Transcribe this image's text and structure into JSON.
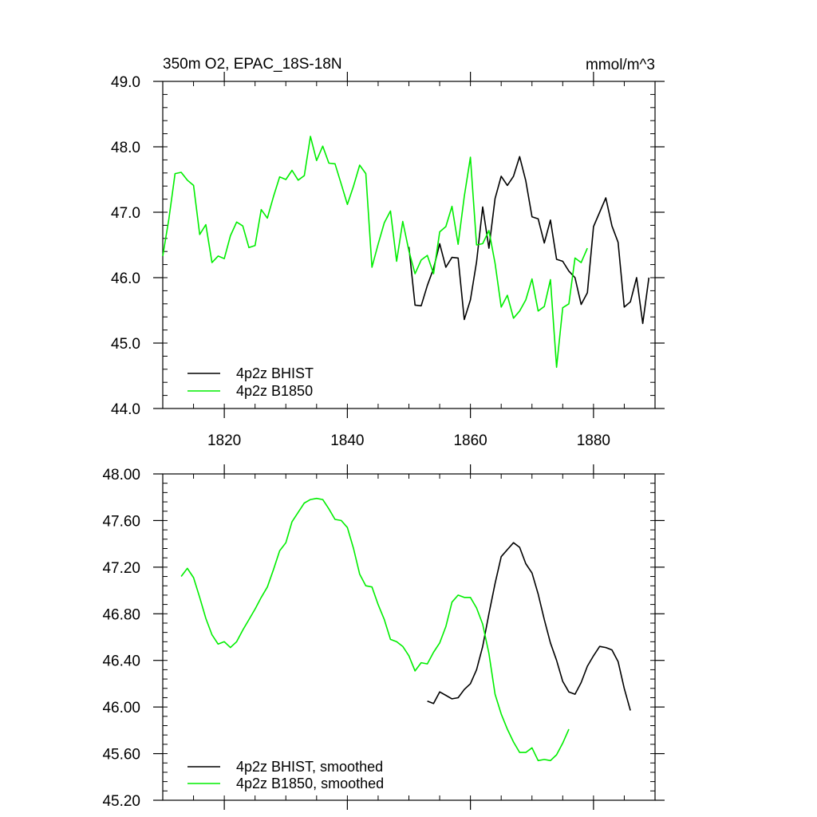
{
  "chart_data": [
    {
      "type": "line",
      "title": "350m O2, EPAC_18S-18N",
      "units": "mmol/m^3",
      "xlim": [
        1810,
        1890
      ],
      "ylim": [
        44.0,
        49.0
      ],
      "x_ticks": [
        1820,
        1840,
        1860,
        1880
      ],
      "y_ticks": [
        "44.0",
        "45.0",
        "46.0",
        "47.0",
        "48.0",
        "49.0"
      ],
      "grid": false,
      "legend": "bottom-left",
      "series": [
        {
          "name": "4p2z BHIST",
          "color": "#000000",
          "x_start": 1850,
          "values": [
            46.47,
            45.58,
            45.57,
            45.88,
            46.14,
            46.52,
            46.16,
            46.31,
            46.3,
            45.36,
            45.66,
            46.24,
            47.08,
            46.45,
            47.21,
            47.55,
            47.41,
            47.55,
            47.85,
            47.48,
            46.93,
            46.9,
            46.53,
            46.88,
            46.28,
            46.25,
            46.1,
            46.0,
            45.59,
            45.77,
            46.78,
            47.0,
            47.22,
            46.79,
            46.54,
            45.55,
            45.63,
            46.0,
            45.3,
            46.0
          ]
        },
        {
          "name": "4p2z B1850",
          "color": "#00ee00",
          "x_start": 1810,
          "values": [
            46.33,
            46.9,
            47.59,
            47.61,
            47.49,
            47.41,
            46.66,
            46.81,
            46.23,
            46.33,
            46.29,
            46.64,
            46.85,
            46.79,
            46.46,
            46.49,
            47.04,
            46.91,
            47.24,
            47.54,
            47.5,
            47.64,
            47.49,
            47.56,
            48.16,
            47.79,
            48.01,
            47.75,
            47.74,
            47.43,
            47.12,
            47.4,
            47.72,
            47.59,
            46.16,
            46.51,
            46.84,
            47.02,
            46.25,
            46.86,
            46.41,
            46.06,
            46.27,
            46.34,
            46.06,
            46.7,
            46.78,
            47.09,
            46.51,
            47.24,
            47.84,
            46.5,
            46.52,
            46.72,
            46.22,
            45.55,
            45.73,
            45.38,
            45.49,
            45.66,
            45.98,
            45.49,
            45.56,
            45.97,
            44.63,
            45.54,
            45.6,
            46.3,
            46.23,
            46.45
          ]
        }
      ]
    },
    {
      "type": "line",
      "xlim": [
        1810,
        1890
      ],
      "ylim": [
        45.2,
        48.0
      ],
      "x_ticks": [
        1820,
        1840,
        1860,
        1880
      ],
      "y_ticks": [
        "45.20",
        "45.60",
        "46.00",
        "46.40",
        "46.80",
        "47.20",
        "47.60",
        "48.00"
      ],
      "grid": false,
      "legend": "bottom-left",
      "series": [
        {
          "name": "4p2z BHIST, smoothed",
          "color": "#000000",
          "x_start": 1853,
          "values": [
            46.05,
            46.03,
            46.13,
            46.1,
            46.07,
            46.08,
            46.15,
            46.2,
            46.32,
            46.52,
            46.8,
            47.06,
            47.29,
            47.35,
            47.41,
            47.37,
            47.23,
            47.15,
            46.97,
            46.75,
            46.55,
            46.4,
            46.22,
            46.13,
            46.11,
            46.21,
            46.35,
            46.44,
            46.52,
            46.51,
            46.49,
            46.39,
            46.16,
            45.97
          ]
        },
        {
          "name": "4p2z B1850, smoothed",
          "color": "#00ee00",
          "x_start": 1813,
          "values": [
            47.12,
            47.19,
            47.11,
            46.94,
            46.76,
            46.62,
            46.54,
            46.56,
            46.51,
            46.56,
            46.66,
            46.75,
            46.84,
            46.94,
            47.03,
            47.18,
            47.34,
            47.41,
            47.59,
            47.67,
            47.75,
            47.78,
            47.79,
            47.78,
            47.7,
            47.61,
            47.6,
            47.54,
            47.36,
            47.14,
            47.04,
            47.03,
            46.88,
            46.75,
            46.58,
            46.56,
            46.52,
            46.44,
            46.31,
            46.38,
            46.37,
            46.47,
            46.55,
            46.69,
            46.9,
            46.96,
            46.94,
            46.94,
            46.85,
            46.71,
            46.46,
            46.11,
            45.94,
            45.81,
            45.7,
            45.61,
            45.61,
            45.65,
            45.54,
            45.55,
            45.54,
            45.59,
            45.69,
            45.81
          ]
        }
      ]
    }
  ]
}
